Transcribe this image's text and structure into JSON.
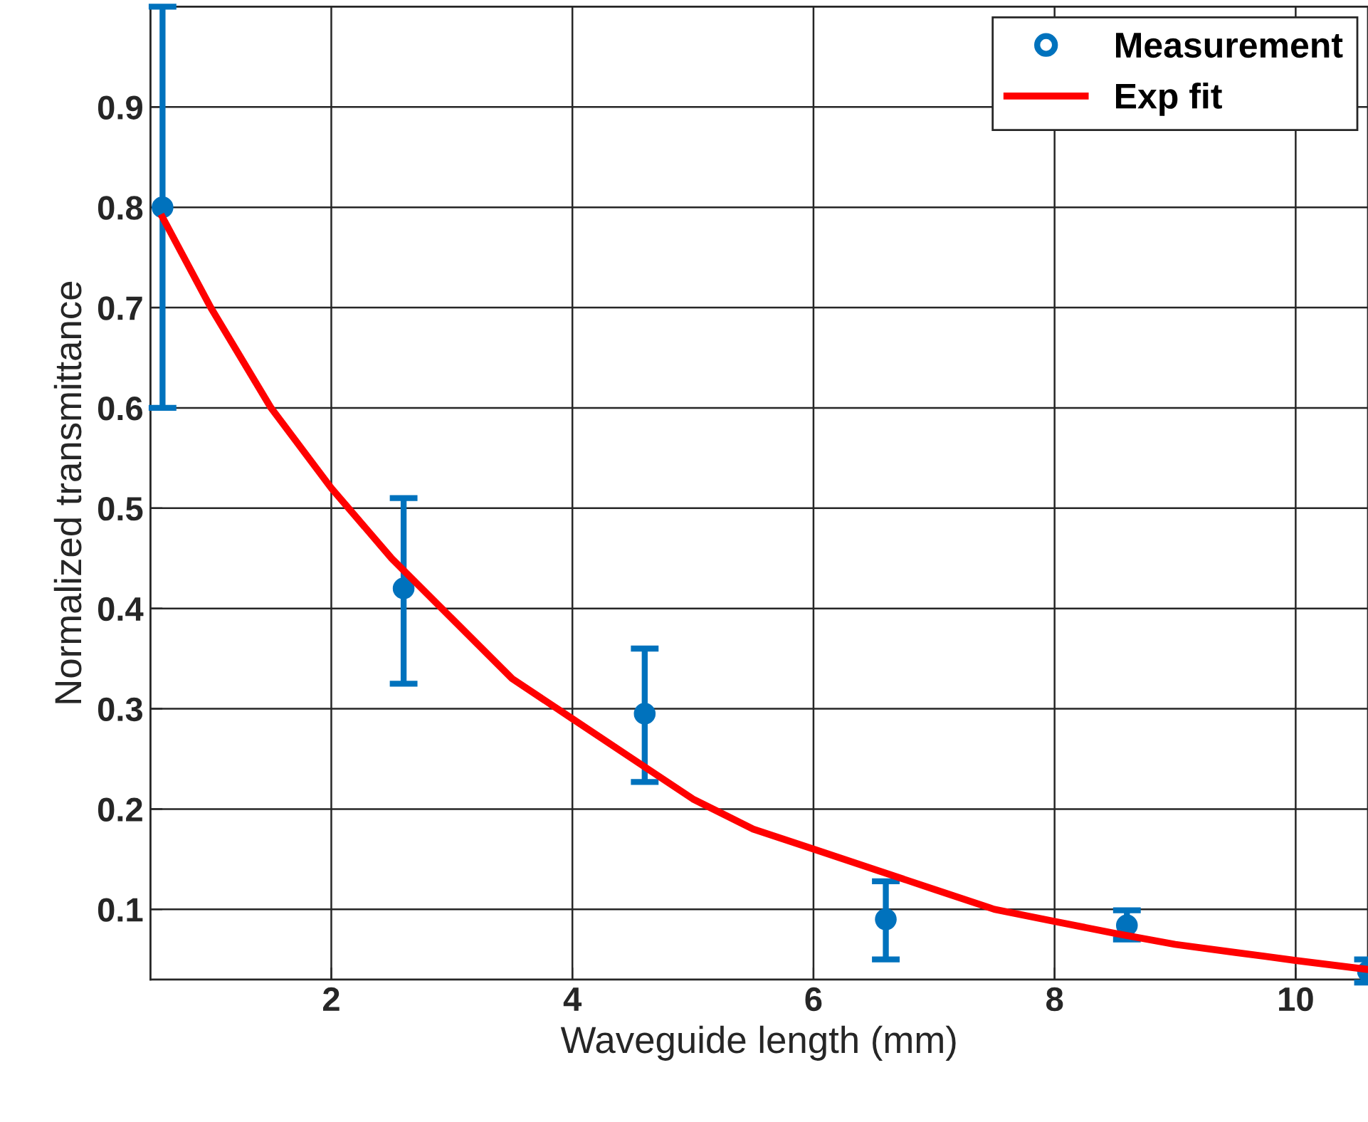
{
  "chart_data": {
    "type": "scatter",
    "xlabel": "Waveguide length (mm)",
    "ylabel": "Normalized transmittance",
    "xlim": [
      0.5,
      10.6
    ],
    "ylim": [
      0.03,
      1.0
    ],
    "xticks": [
      2,
      4,
      6,
      8,
      10
    ],
    "yticks": [
      0.1,
      0.2,
      0.3,
      0.4,
      0.5,
      0.6,
      0.7,
      0.8,
      0.9
    ],
    "grid": true,
    "legend": "top right",
    "series": [
      {
        "name": "Measurement",
        "marker": "circle",
        "color": "#0072bd",
        "x": [
          0.6,
          2.6,
          4.6,
          6.6,
          8.6,
          10.6
        ],
        "values": [
          0.8,
          0.42,
          0.295,
          0.09,
          0.084,
          0.038
        ],
        "errors": [
          [
            0.6,
            1.0
          ],
          [
            0.325,
            0.51
          ],
          [
            0.227,
            0.36
          ],
          [
            0.05,
            0.128
          ],
          [
            0.07,
            0.099
          ],
          [
            0.027,
            0.05
          ]
        ]
      },
      {
        "name": "Exp fit",
        "type": "line",
        "marker": "none",
        "color": "#ff0000",
        "x": [
          0.6,
          1.0,
          1.5,
          2.0,
          2.5,
          3.0,
          3.5,
          4.0,
          4.5,
          5.0,
          5.5,
          6.0,
          6.5,
          7.0,
          7.5,
          8.0,
          8.5,
          9.0,
          9.5,
          10.0,
          10.6
        ],
        "values": [
          0.79,
          0.7,
          0.6,
          0.52,
          0.45,
          0.39,
          0.33,
          0.29,
          0.25,
          0.21,
          0.18,
          0.16,
          0.14,
          0.12,
          0.1,
          0.088,
          0.076,
          0.065,
          0.057,
          0.049,
          0.04
        ]
      }
    ]
  }
}
